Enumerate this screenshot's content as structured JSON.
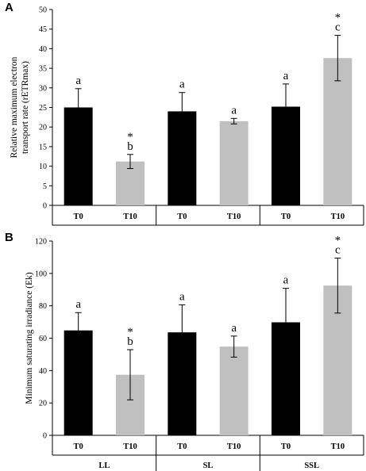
{
  "chart_data": [
    {
      "type": "bar",
      "panel": "A",
      "ylabel_lines": [
        "Relative maximum electron",
        "transport rate (rETRmax)"
      ],
      "ylim": [
        0,
        50
      ],
      "yticks": [
        0,
        5,
        10,
        15,
        20,
        25,
        30,
        35,
        40,
        45,
        50
      ],
      "categories": [
        "T0",
        "T10",
        "T0",
        "T10",
        "T0",
        "T10"
      ],
      "values": [
        25,
        11.2,
        24,
        21.5,
        25.2,
        37.6
      ],
      "errors": [
        4.8,
        1.8,
        4.8,
        0.7,
        5.8,
        5.8
      ],
      "colors": [
        "#000000",
        "#c0c0c0",
        "#000000",
        "#c0c0c0",
        "#000000",
        "#c0c0c0"
      ],
      "letters": [
        "a",
        "b",
        "a",
        "a",
        "a",
        "c"
      ],
      "stars": [
        "",
        "*",
        "",
        "",
        "",
        "*"
      ],
      "groups": []
    },
    {
      "type": "bar",
      "panel": "B",
      "ylabel_lines": [
        "Minimum saturating irradiance (Ek)"
      ],
      "ylim": [
        0,
        120
      ],
      "yticks": [
        0,
        20,
        40,
        60,
        80,
        100,
        120
      ],
      "categories": [
        "T0",
        "T10",
        "T0",
        "T10",
        "T0",
        "T10"
      ],
      "values": [
        64.8,
        37.4,
        63.6,
        54.8,
        69.8,
        92.5
      ],
      "errors": [
        11.0,
        15.5,
        17.0,
        6.5,
        21.0,
        17.0
      ],
      "colors": [
        "#000000",
        "#c0c0c0",
        "#000000",
        "#c0c0c0",
        "#000000",
        "#c0c0c0"
      ],
      "letters": [
        "a",
        "b",
        "a",
        "a",
        "a",
        "c"
      ],
      "stars": [
        "",
        "*",
        "",
        "",
        "",
        "*"
      ],
      "groups": [
        "LL",
        "SL",
        "SSL"
      ]
    }
  ]
}
